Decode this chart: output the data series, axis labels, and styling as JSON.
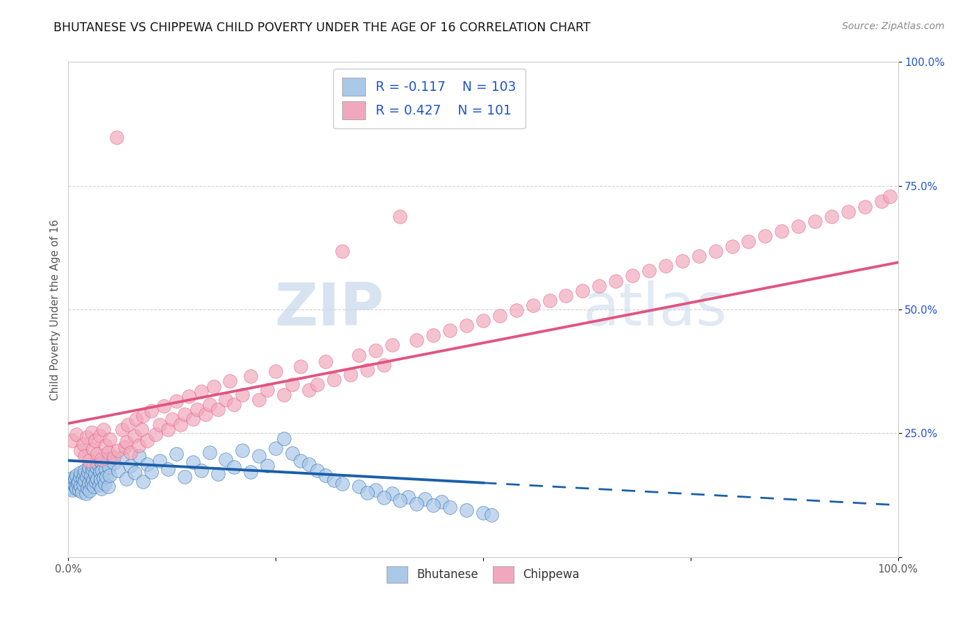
{
  "title": "BHUTANESE VS CHIPPEWA CHILD POVERTY UNDER THE AGE OF 16 CORRELATION CHART",
  "source": "Source: ZipAtlas.com",
  "ylabel": "Child Poverty Under the Age of 16",
  "yticks": [
    0.0,
    0.25,
    0.5,
    0.75,
    1.0
  ],
  "ytick_labels": [
    "",
    "25.0%",
    "50.0%",
    "75.0%",
    "100.0%"
  ],
  "color_bhutanese": "#aac8e8",
  "color_chippewa": "#f2a8bc",
  "color_blue_line": "#1a5fa8",
  "color_pink_line": "#e05580",
  "color_legend_text": "#2255cc",
  "watermark_zip": "ZIP",
  "watermark_atlas": "atlas",
  "bhutanese_x": [
    0.002,
    0.003,
    0.004,
    0.005,
    0.006,
    0.007,
    0.008,
    0.009,
    0.01,
    0.01,
    0.011,
    0.012,
    0.013,
    0.014,
    0.015,
    0.015,
    0.016,
    0.017,
    0.018,
    0.019,
    0.02,
    0.02,
    0.021,
    0.022,
    0.023,
    0.024,
    0.025,
    0.025,
    0.026,
    0.027,
    0.028,
    0.029,
    0.03,
    0.03,
    0.031,
    0.032,
    0.033,
    0.034,
    0.035,
    0.036,
    0.037,
    0.038,
    0.039,
    0.04,
    0.04,
    0.041,
    0.042,
    0.043,
    0.044,
    0.045,
    0.046,
    0.047,
    0.048,
    0.049,
    0.05,
    0.055,
    0.06,
    0.065,
    0.07,
    0.075,
    0.08,
    0.085,
    0.09,
    0.095,
    0.1,
    0.11,
    0.12,
    0.13,
    0.14,
    0.15,
    0.16,
    0.17,
    0.18,
    0.19,
    0.2,
    0.21,
    0.22,
    0.23,
    0.24,
    0.25,
    0.26,
    0.27,
    0.28,
    0.29,
    0.3,
    0.31,
    0.32,
    0.33,
    0.35,
    0.37,
    0.39,
    0.41,
    0.43,
    0.45,
    0.36,
    0.38,
    0.4,
    0.42,
    0.44,
    0.46,
    0.48,
    0.5,
    0.51
  ],
  "bhutanese_y": [
    0.155,
    0.14,
    0.16,
    0.135,
    0.15,
    0.145,
    0.158,
    0.142,
    0.138,
    0.165,
    0.148,
    0.152,
    0.136,
    0.162,
    0.144,
    0.17,
    0.132,
    0.158,
    0.146,
    0.168,
    0.154,
    0.175,
    0.128,
    0.162,
    0.14,
    0.172,
    0.15,
    0.18,
    0.134,
    0.165,
    0.148,
    0.178,
    0.155,
    0.185,
    0.142,
    0.168,
    0.152,
    0.182,
    0.158,
    0.188,
    0.145,
    0.172,
    0.156,
    0.192,
    0.138,
    0.175,
    0.16,
    0.195,
    0.148,
    0.178,
    0.162,
    0.198,
    0.142,
    0.182,
    0.165,
    0.19,
    0.175,
    0.202,
    0.158,
    0.185,
    0.17,
    0.205,
    0.152,
    0.188,
    0.172,
    0.195,
    0.178,
    0.208,
    0.162,
    0.192,
    0.175,
    0.212,
    0.168,
    0.198,
    0.182,
    0.215,
    0.172,
    0.205,
    0.185,
    0.22,
    0.24,
    0.21,
    0.195,
    0.188,
    0.175,
    0.165,
    0.155,
    0.148,
    0.142,
    0.135,
    0.128,
    0.122,
    0.118,
    0.112,
    0.13,
    0.12,
    0.115,
    0.108,
    0.105,
    0.1,
    0.095,
    0.09,
    0.085
  ],
  "chippewa_x": [
    0.005,
    0.01,
    0.015,
    0.018,
    0.02,
    0.022,
    0.025,
    0.028,
    0.03,
    0.032,
    0.035,
    0.038,
    0.04,
    0.042,
    0.045,
    0.048,
    0.05,
    0.055,
    0.058,
    0.06,
    0.065,
    0.068,
    0.07,
    0.072,
    0.075,
    0.08,
    0.082,
    0.085,
    0.088,
    0.09,
    0.095,
    0.1,
    0.105,
    0.11,
    0.115,
    0.12,
    0.125,
    0.13,
    0.135,
    0.14,
    0.145,
    0.15,
    0.155,
    0.16,
    0.165,
    0.17,
    0.175,
    0.18,
    0.19,
    0.195,
    0.2,
    0.21,
    0.22,
    0.23,
    0.24,
    0.25,
    0.26,
    0.27,
    0.28,
    0.29,
    0.3,
    0.31,
    0.32,
    0.33,
    0.34,
    0.35,
    0.36,
    0.37,
    0.38,
    0.39,
    0.4,
    0.42,
    0.44,
    0.46,
    0.48,
    0.5,
    0.52,
    0.54,
    0.56,
    0.58,
    0.6,
    0.62,
    0.64,
    0.66,
    0.68,
    0.7,
    0.72,
    0.74,
    0.76,
    0.78,
    0.8,
    0.82,
    0.84,
    0.86,
    0.88,
    0.9,
    0.92,
    0.94,
    0.96,
    0.98,
    0.99
  ],
  "chippewa_y": [
    0.235,
    0.248,
    0.215,
    0.228,
    0.205,
    0.242,
    0.195,
    0.252,
    0.218,
    0.235,
    0.208,
    0.245,
    0.198,
    0.258,
    0.225,
    0.212,
    0.238,
    0.202,
    0.848,
    0.215,
    0.258,
    0.222,
    0.232,
    0.268,
    0.212,
    0.245,
    0.278,
    0.225,
    0.258,
    0.285,
    0.235,
    0.295,
    0.248,
    0.268,
    0.305,
    0.258,
    0.278,
    0.315,
    0.268,
    0.288,
    0.325,
    0.278,
    0.298,
    0.335,
    0.288,
    0.308,
    0.345,
    0.298,
    0.318,
    0.355,
    0.308,
    0.328,
    0.365,
    0.318,
    0.338,
    0.375,
    0.328,
    0.348,
    0.385,
    0.338,
    0.348,
    0.395,
    0.358,
    0.618,
    0.368,
    0.408,
    0.378,
    0.418,
    0.388,
    0.428,
    0.688,
    0.438,
    0.448,
    0.458,
    0.468,
    0.478,
    0.488,
    0.498,
    0.508,
    0.518,
    0.528,
    0.538,
    0.548,
    0.558,
    0.568,
    0.578,
    0.588,
    0.598,
    0.608,
    0.618,
    0.628,
    0.638,
    0.648,
    0.658,
    0.668,
    0.678,
    0.688,
    0.698,
    0.708,
    0.718,
    0.728
  ],
  "xlim": [
    0.0,
    1.0
  ],
  "ylim": [
    0.0,
    1.0
  ],
  "blue_line_x0": 0.0,
  "blue_line_x_split": 0.5,
  "blue_line_x1": 1.0,
  "blue_line_y0": 0.195,
  "blue_line_y1": 0.105,
  "pink_line_x0": 0.0,
  "pink_line_x1": 1.0,
  "pink_line_y0": 0.27,
  "pink_line_y1": 0.595
}
